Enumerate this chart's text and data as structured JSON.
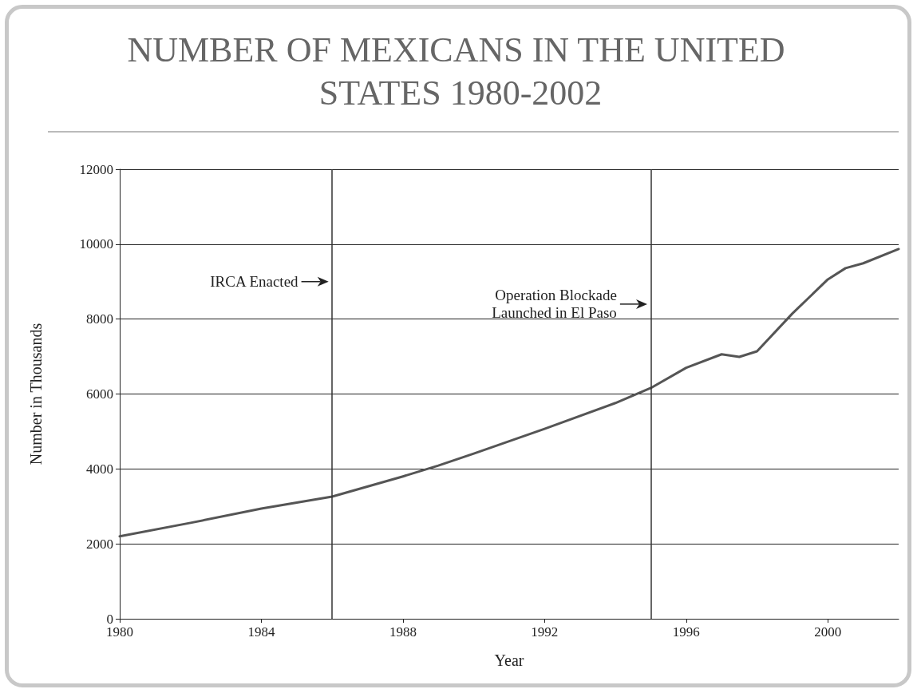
{
  "chart_data": {
    "type": "line",
    "title": "NUMBER OF MEXICANS IN THE UNITED STATES 1980-2002",
    "xlabel": "Year",
    "ylabel": "Number in Thousands",
    "x": [
      1980,
      1982,
      1984,
      1986,
      1988,
      1989,
      1990,
      1992,
      1994,
      1995,
      1996,
      1997,
      1997.5,
      1998,
      1999,
      2000,
      2000.5,
      2001,
      2002
    ],
    "series": [
      {
        "color": "#555555",
        "values": [
          2200,
          2560,
          2940,
          3260,
          3800,
          4090,
          4410,
          5070,
          5760,
          6160,
          6700,
          7060,
          6990,
          7140,
          8150,
          9060,
          9360,
          9490,
          9870
        ]
      }
    ],
    "xlim": [
      1980,
      2002
    ],
    "xticks": [
      1980,
      1984,
      1988,
      1992,
      1996,
      2000
    ],
    "ylim": [
      0,
      12000
    ],
    "yticks": [
      0,
      2000,
      4000,
      6000,
      8000,
      10000,
      12000
    ],
    "grid": "y",
    "marker": "none",
    "line_style": "solid",
    "ref_lines": [
      {
        "axis": "x",
        "value": 1986,
        "color": "#333333"
      },
      {
        "axis": "x",
        "value": 1995,
        "color": "#333333"
      }
    ],
    "annotations": [
      {
        "text": "IRCA Enacted",
        "x": 1985.9,
        "y": 9000
      },
      {
        "text": "Operation Blockade\nLaunched in El Paso",
        "x": 1994.9,
        "y": 8400
      }
    ]
  }
}
